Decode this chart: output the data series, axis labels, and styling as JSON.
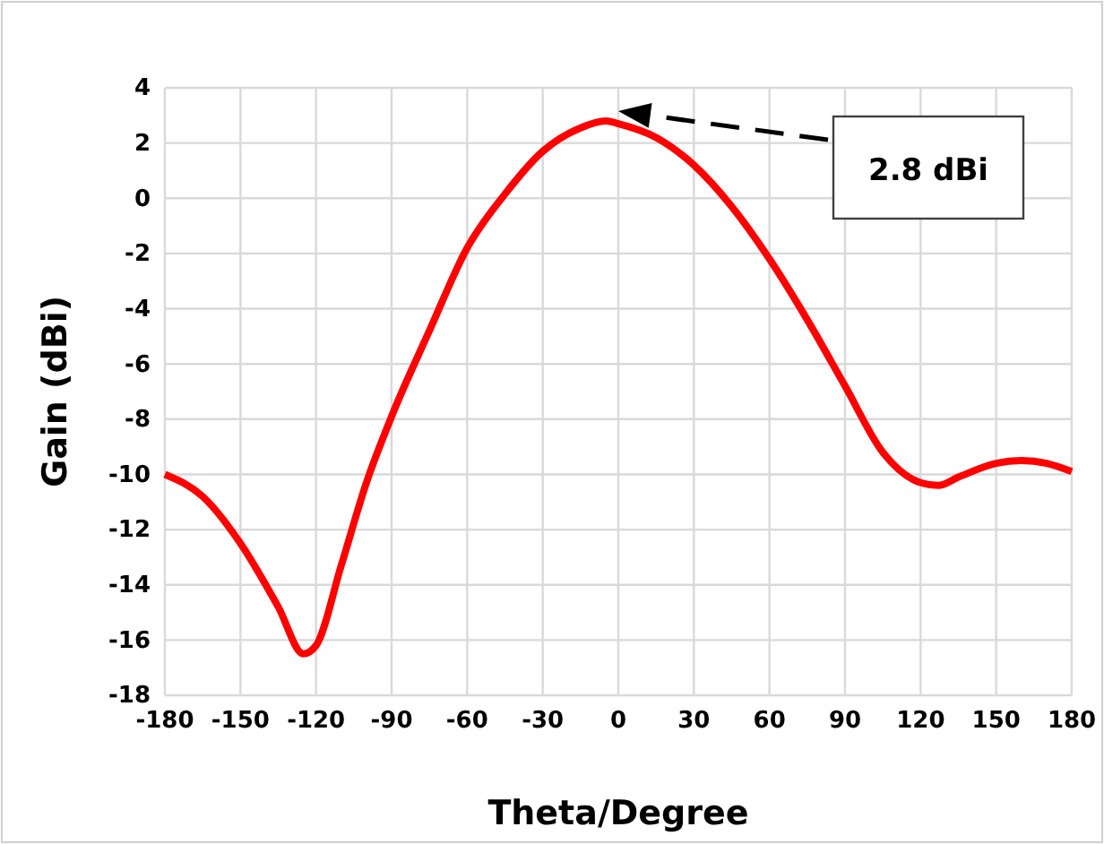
{
  "chart_data": {
    "type": "line",
    "xlabel": "Theta/Degree",
    "ylabel": "Gain (dBi)",
    "x": [
      -180,
      -165,
      -150,
      -135,
      -125,
      -120,
      -110,
      -100,
      -90,
      -75,
      -60,
      -45,
      -30,
      -15,
      -5,
      0,
      15,
      30,
      45,
      60,
      75,
      90,
      105,
      120,
      127,
      135,
      150,
      160,
      170,
      180
    ],
    "series": [
      {
        "color": "#ff0000",
        "values": [
          -10.0,
          -10.8,
          -12.5,
          -14.8,
          -16.5,
          -16.2,
          -13.3,
          -10.3,
          -7.9,
          -4.8,
          -1.8,
          0.15,
          1.7,
          2.55,
          2.8,
          2.7,
          2.2,
          1.2,
          -0.3,
          -2.2,
          -4.4,
          -6.8,
          -9.2,
          -10.3,
          -10.4,
          -10.1,
          -9.6,
          -9.5,
          -9.6,
          -9.9
        ]
      }
    ],
    "xlim": [
      -180,
      180
    ],
    "xticks": [
      -180,
      -150,
      -120,
      -90,
      -60,
      -30,
      0,
      30,
      60,
      90,
      120,
      150,
      180
    ],
    "ylim": [
      -18,
      4
    ],
    "yticks": [
      -18,
      -16,
      -14,
      -12,
      -10,
      -8,
      -6,
      -4,
      -2,
      0,
      2,
      4
    ],
    "grid": true,
    "marker": "none",
    "line_style": "solid",
    "annotations": [
      "2.8 dBi"
    ]
  }
}
